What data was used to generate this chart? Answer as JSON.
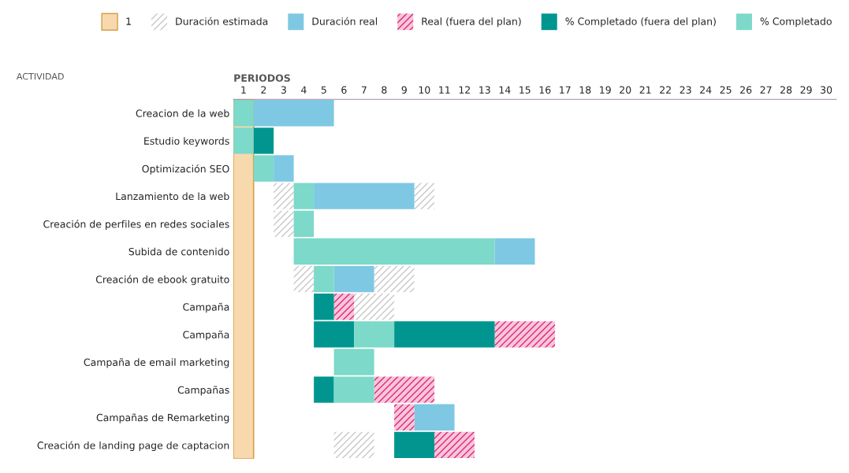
{
  "chart_data": {
    "type": "bar",
    "orientation": "horizontal",
    "xlabel": "PERIODOS",
    "ylabel": "ACTIVIDAD",
    "categories": [
      "Creacion de la web",
      "Estudio keywords",
      "Optimización SEO",
      "Lanzamiento de la web",
      "Creación de perfiles en redes sociales",
      "Subida de contenido",
      "Creación de ebook gratuito",
      "Campaña",
      "Campaña",
      "Campaña de email marketing",
      "Campañas",
      "Campañas de Remarketing",
      "Creación de landing page de captacion"
    ],
    "series": [
      {
        "name": "Duración estimada",
        "color": "#c8c8c8",
        "base": [
          null,
          null,
          null,
          3,
          3,
          null,
          4,
          7,
          null,
          null,
          null,
          null,
          6
        ],
        "values": [
          null,
          null,
          null,
          1,
          1,
          null,
          1,
          2,
          null,
          null,
          null,
          null,
          2
        ]
      },
      {
        "color": "#c8c8c8",
        "base": [
          null,
          null,
          null,
          10,
          null,
          null,
          8,
          null,
          null,
          null,
          null,
          null,
          null
        ],
        "values": [
          null,
          null,
          null,
          1,
          null,
          null,
          2,
          null,
          null,
          null,
          null,
          null,
          null
        ]
      },
      {
        "name": "Duración real",
        "color": "#7ec8e3",
        "base": [
          2,
          null,
          3,
          5,
          null,
          14,
          6,
          null,
          null,
          null,
          null,
          10,
          null
        ],
        "values": [
          4,
          null,
          1,
          5,
          null,
          2,
          2,
          null,
          null,
          null,
          null,
          2,
          null
        ]
      },
      {
        "name": "Real (fuera del plan)",
        "color": "#e0287a",
        "base": [
          null,
          null,
          null,
          null,
          null,
          null,
          null,
          6,
          14,
          null,
          8,
          9,
          11
        ],
        "values": [
          null,
          null,
          null,
          null,
          null,
          null,
          null,
          1,
          3,
          null,
          3,
          1,
          2
        ]
      },
      {
        "name": "% Completado (fuera del plan)",
        "color": "#00968f",
        "base": [
          null,
          2,
          null,
          null,
          null,
          null,
          null,
          5,
          5,
          null,
          5,
          null,
          9
        ],
        "values": [
          null,
          1,
          null,
          null,
          null,
          null,
          null,
          1,
          2,
          null,
          1,
          null,
          2
        ]
      },
      {
        "color": "#00968f",
        "base": [
          null,
          null,
          null,
          null,
          null,
          null,
          null,
          null,
          9,
          null,
          null,
          null,
          null
        ],
        "values": [
          null,
          null,
          null,
          null,
          null,
          null,
          null,
          null,
          5,
          null,
          null,
          null,
          null
        ]
      },
      {
        "name": "% Completado",
        "color": "#7dd9c9",
        "base": [
          1,
          1,
          2,
          4,
          4,
          4,
          5,
          null,
          7,
          6,
          6,
          null,
          null
        ],
        "values": [
          1,
          1,
          1,
          1,
          1,
          10,
          1,
          null,
          2,
          2,
          2,
          null,
          null
        ]
      }
    ],
    "xlim": [
      1,
      31
    ],
    "xticks": [
      {
        "value": 1.5,
        "label": "1"
      },
      {
        "value": 2.5,
        "label": "2"
      },
      {
        "value": 3.5,
        "label": "3"
      },
      {
        "value": 4.5,
        "label": "4"
      },
      {
        "value": 5.5,
        "label": "5"
      },
      {
        "value": 6.5,
        "label": "6"
      },
      {
        "value": 7.5,
        "label": "7"
      },
      {
        "value": 8.5,
        "label": "8"
      },
      {
        "value": 9.5,
        "label": "9"
      },
      {
        "value": 10.5,
        "label": "10"
      },
      {
        "value": 11.5,
        "label": "11"
      },
      {
        "value": 12.5,
        "label": "12"
      },
      {
        "value": 13.5,
        "label": "13"
      },
      {
        "value": 14.5,
        "label": "14"
      },
      {
        "value": 15.5,
        "label": "15"
      },
      {
        "value": 16.5,
        "label": "16"
      },
      {
        "value": 17.5,
        "label": "17"
      },
      {
        "value": 18.5,
        "label": "18"
      },
      {
        "value": 19.5,
        "label": "19"
      },
      {
        "value": 20.5,
        "label": "20"
      },
      {
        "value": 21.5,
        "label": "21"
      },
      {
        "value": 22.5,
        "label": "22"
      },
      {
        "value": 23.5,
        "label": "23"
      },
      {
        "value": 24.5,
        "label": "24"
      },
      {
        "value": 25.5,
        "label": "25"
      },
      {
        "value": 26.5,
        "label": "26"
      },
      {
        "value": 27.5,
        "label": "27"
      },
      {
        "value": 28.5,
        "label": "28"
      },
      {
        "value": 29.5,
        "label": "29"
      },
      {
        "value": 30.5,
        "label": "30"
      }
    ],
    "bands": [
      {
        "axis": "x",
        "from": 1,
        "to": 2,
        "label": "1",
        "color": "#f8d9ad"
      }
    ],
    "grid": false,
    "legend": "top"
  }
}
